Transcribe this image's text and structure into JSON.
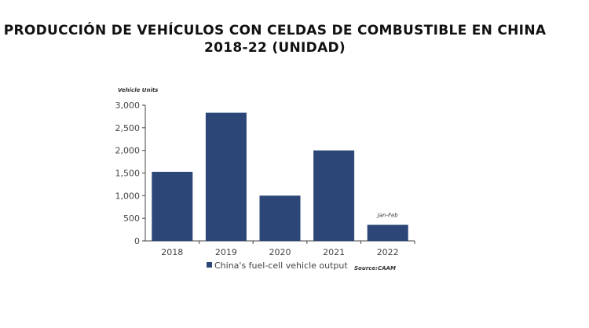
{
  "title": "Producción de vehículos con celdas de combustible en China 2018-22 (unidad)",
  "chart_data": {
    "type": "bar",
    "title": "Producción de vehículos con celdas de combustible en China 2018-22 (unidad)",
    "ylabel": "Vehicle Units",
    "xlabel": "",
    "categories": [
      "2018",
      "2019",
      "2020",
      "2021",
      "2022"
    ],
    "series": [
      {
        "name": "China's fuel-cell vehicle output",
        "values": [
          1527,
          2833,
          1000,
          2000,
          355
        ],
        "color": "#2b4677"
      }
    ],
    "ylim": [
      0,
      3000
    ],
    "yticks": [
      0,
      500,
      1000,
      1500,
      2000,
      2500,
      3000
    ],
    "ytick_labels": [
      "0",
      "500",
      "1,000",
      "1,500",
      "2,000",
      "2,500",
      "3,000"
    ],
    "annotations": [
      {
        "category": "2022",
        "text": "Jan-Feb"
      }
    ],
    "source": "Source:CAAM",
    "grid": false,
    "legend": "bottom"
  }
}
